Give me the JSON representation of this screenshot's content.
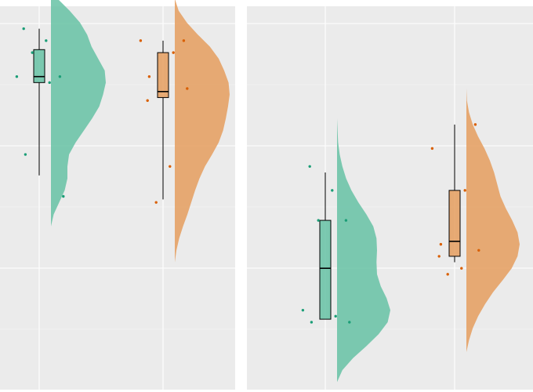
{
  "chart_data": [
    {
      "type": "raincloud",
      "panel": "left",
      "grid": true,
      "y_range": [
        0.8,
        7.2
      ],
      "series": [
        {
          "slot": 0,
          "color": "#66c2a5",
          "point_color": "#1b9e77",
          "box": {
            "q1": 5.9,
            "median": 6.0,
            "q3": 6.45,
            "whisker_low": 4.35,
            "whisker_high": 6.8
          },
          "points": [
            6.8,
            6.6,
            6.4,
            6.0,
            6.0,
            5.9,
            4.7,
            4.0
          ],
          "density": [
            [
              3.5,
              0.0
            ],
            [
              3.7,
              0.05
            ],
            [
              3.9,
              0.15
            ],
            [
              4.1,
              0.25
            ],
            [
              4.3,
              0.3
            ],
            [
              4.5,
              0.3
            ],
            [
              4.7,
              0.33
            ],
            [
              4.9,
              0.45
            ],
            [
              5.1,
              0.6
            ],
            [
              5.3,
              0.75
            ],
            [
              5.5,
              0.88
            ],
            [
              5.7,
              0.95
            ],
            [
              5.9,
              1.0
            ],
            [
              6.1,
              0.98
            ],
            [
              6.3,
              0.86
            ],
            [
              6.5,
              0.74
            ],
            [
              6.7,
              0.66
            ],
            [
              6.9,
              0.53
            ],
            [
              7.1,
              0.34
            ],
            [
              7.3,
              0.12
            ],
            [
              7.5,
              0.0
            ]
          ]
        },
        {
          "slot": 1,
          "color": "#e59d5e",
          "point_color": "#d95f02",
          "box": {
            "q1": 5.65,
            "median": 5.75,
            "q3": 6.4,
            "whisker_low": 3.95,
            "whisker_high": 6.6
          },
          "points": [
            6.6,
            6.6,
            6.4,
            6.0,
            5.8,
            5.6,
            4.5,
            3.9
          ],
          "density": [
            [
              2.9,
              0.0
            ],
            [
              3.1,
              0.03
            ],
            [
              3.3,
              0.08
            ],
            [
              3.5,
              0.15
            ],
            [
              3.7,
              0.23
            ],
            [
              3.9,
              0.3
            ],
            [
              4.1,
              0.37
            ],
            [
              4.3,
              0.45
            ],
            [
              4.5,
              0.55
            ],
            [
              4.7,
              0.68
            ],
            [
              4.9,
              0.8
            ],
            [
              5.1,
              0.88
            ],
            [
              5.3,
              0.93
            ],
            [
              5.5,
              0.97
            ],
            [
              5.7,
              1.0
            ],
            [
              5.9,
              0.98
            ],
            [
              6.1,
              0.9
            ],
            [
              6.3,
              0.8
            ],
            [
              6.5,
              0.64
            ],
            [
              6.7,
              0.42
            ],
            [
              6.9,
              0.22
            ],
            [
              7.1,
              0.07
            ],
            [
              7.3,
              0.0
            ]
          ]
        }
      ]
    },
    {
      "type": "raincloud",
      "panel": "right",
      "grid": true,
      "y_range": [
        0.8,
        7.2
      ],
      "series": [
        {
          "slot": 0,
          "color": "#66c2a5",
          "point_color": "#1b9e77",
          "box": {
            "q1": 1.95,
            "median": 2.8,
            "q3": 3.6,
            "whisker_low": 1.95,
            "whisker_high": 4.4
          },
          "points": [
            4.5,
            4.1,
            3.6,
            3.6,
            2.1,
            2.0,
            1.9,
            1.9
          ],
          "density": [
            [
              0.9,
              0.0
            ],
            [
              1.1,
              0.1
            ],
            [
              1.3,
              0.3
            ],
            [
              1.5,
              0.55
            ],
            [
              1.7,
              0.78
            ],
            [
              1.9,
              0.95
            ],
            [
              2.1,
              1.0
            ],
            [
              2.3,
              0.93
            ],
            [
              2.5,
              0.82
            ],
            [
              2.7,
              0.75
            ],
            [
              2.9,
              0.74
            ],
            [
              3.1,
              0.75
            ],
            [
              3.3,
              0.74
            ],
            [
              3.5,
              0.68
            ],
            [
              3.7,
              0.55
            ],
            [
              3.9,
              0.4
            ],
            [
              4.1,
              0.27
            ],
            [
              4.3,
              0.17
            ],
            [
              4.5,
              0.1
            ],
            [
              4.7,
              0.05
            ],
            [
              4.9,
              0.02
            ],
            [
              5.1,
              0.01
            ],
            [
              5.3,
              0.0
            ]
          ]
        },
        {
          "slot": 1,
          "color": "#e59d5e",
          "point_color": "#d95f02",
          "box": {
            "q1": 3.0,
            "median": 3.25,
            "q3": 4.1,
            "whisker_low": 2.9,
            "whisker_high": 5.2
          },
          "points": [
            5.2,
            4.8,
            4.1,
            3.2,
            3.1,
            3.0,
            2.8,
            2.7
          ],
          "density": [
            [
              1.4,
              0.0
            ],
            [
              1.6,
              0.05
            ],
            [
              1.8,
              0.12
            ],
            [
              2.0,
              0.22
            ],
            [
              2.2,
              0.35
            ],
            [
              2.4,
              0.5
            ],
            [
              2.6,
              0.68
            ],
            [
              2.8,
              0.85
            ],
            [
              3.0,
              0.96
            ],
            [
              3.2,
              1.0
            ],
            [
              3.4,
              0.96
            ],
            [
              3.6,
              0.86
            ],
            [
              3.8,
              0.74
            ],
            [
              4.0,
              0.64
            ],
            [
              4.2,
              0.58
            ],
            [
              4.4,
              0.52
            ],
            [
              4.6,
              0.44
            ],
            [
              4.8,
              0.34
            ],
            [
              5.0,
              0.22
            ],
            [
              5.2,
              0.12
            ],
            [
              5.4,
              0.05
            ],
            [
              5.6,
              0.01
            ],
            [
              5.8,
              0.0
            ]
          ]
        }
      ]
    }
  ]
}
